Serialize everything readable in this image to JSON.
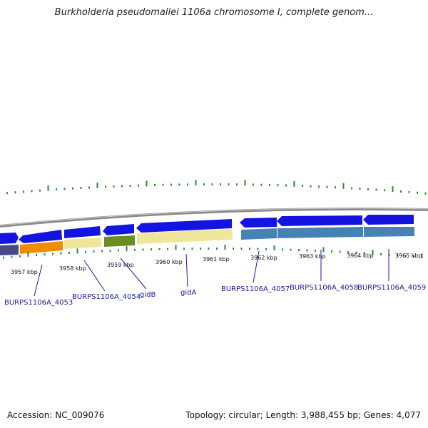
{
  "title": "Burkholderia pseudomallei 1106a chromosome I, complete genom...",
  "footer": {
    "accession": "Accession: NC_009076",
    "summary": "Topology: circular; Length: 3,988,455 bp; Genes: 4,077"
  },
  "colors": {
    "gene_arrow": "#1414e0",
    "backbone": "#8a8a8a",
    "gc_tick": "#2e8b2e",
    "label_line": "#1a1aa6"
  },
  "tick_labels": [
    "3957 kbp",
    "3958 kbp",
    "3959 kbp",
    "3960 kbp",
    "3961 kbp",
    "3962 kbp",
    "3963 kbp",
    "3964 kbp",
    "3965 kbp"
  ],
  "gene_labels": [
    "BURPS1106A_4053",
    "BURPS1106A_4054",
    "gidB",
    "gidA",
    "BURPS1106A_4057",
    "BURPS1106A_4058",
    "BURPS1106A_4059"
  ]
}
